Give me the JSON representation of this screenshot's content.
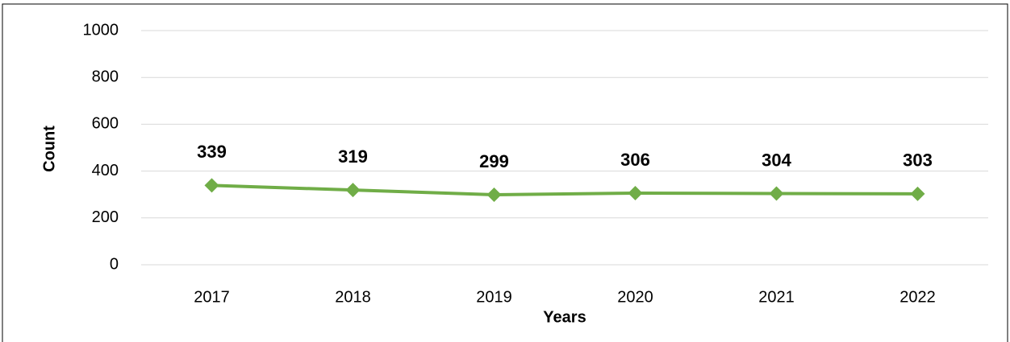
{
  "chart_data": {
    "type": "line",
    "x_label": "Years",
    "y_label": "Count",
    "categories": [
      "2017",
      "2018",
      "2019",
      "2020",
      "2021",
      "2022"
    ],
    "series": [
      {
        "name": "Count",
        "color": "#70ad47",
        "values": [
          339,
          319,
          299,
          306,
          304,
          303
        ]
      }
    ],
    "ylim": [
      0,
      1000
    ],
    "yticks": [
      0,
      200,
      400,
      600,
      800,
      1000
    ],
    "grid": true
  }
}
